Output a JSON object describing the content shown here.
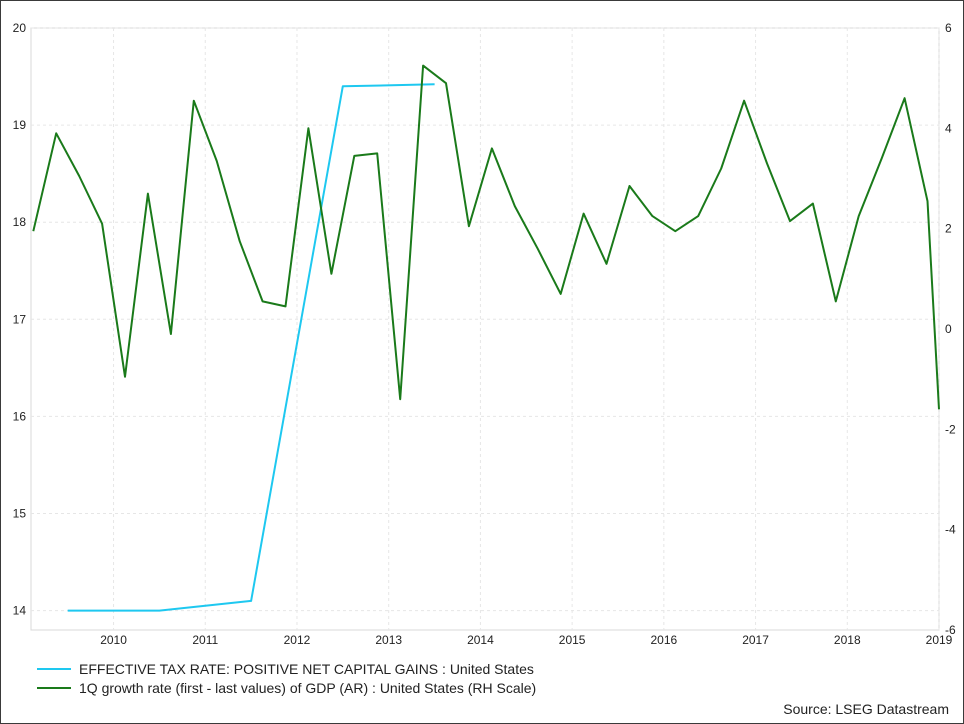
{
  "chart_data": {
    "type": "line",
    "x_axis": {
      "ticks": [
        "2010",
        "2011",
        "2012",
        "2013",
        "2014",
        "2015",
        "2016",
        "2017",
        "2018",
        "2019"
      ],
      "range": [
        2009.6,
        2019.5
      ]
    },
    "y_left": {
      "range": [
        13.8,
        20
      ],
      "ticks": [
        "14",
        "15",
        "16",
        "17",
        "18",
        "19",
        "20"
      ]
    },
    "y_right": {
      "range": [
        -6,
        6
      ],
      "ticks": [
        "-6",
        "-4",
        "-2",
        "0",
        "2",
        "4",
        "6"
      ]
    },
    "grid": true,
    "legend_position": "bottom-left",
    "series": [
      {
        "name": "EFFECTIVE TAX RATE: POSITIVE NET CAPITAL GAINS : United States",
        "axis": "left",
        "color": "#1ec8f0",
        "points": [
          [
            2010,
            14.0
          ],
          [
            2011,
            14.0
          ],
          [
            2012,
            14.1
          ],
          [
            2013,
            19.4
          ],
          [
            2014,
            19.42
          ]
        ]
      },
      {
        "name": "1Q growth rate (first - last values) of GDP (AR) : United States (RH Scale)",
        "axis": "right",
        "color": "#1a7a1a",
        "points": [
          [
            2009.625,
            1.95
          ],
          [
            2009.875,
            3.9
          ],
          [
            2010.125,
            3.05
          ],
          [
            2010.375,
            2.1
          ],
          [
            2010.625,
            -0.95
          ],
          [
            2010.875,
            2.7
          ],
          [
            2011.125,
            -0.1
          ],
          [
            2011.375,
            4.55
          ],
          [
            2011.625,
            3.35
          ],
          [
            2011.875,
            1.75
          ],
          [
            2012.125,
            0.55
          ],
          [
            2012.375,
            0.45
          ],
          [
            2012.625,
            4.0
          ],
          [
            2012.875,
            1.1
          ],
          [
            2013.125,
            3.45
          ],
          [
            2013.375,
            3.5
          ],
          [
            2013.625,
            -1.4
          ],
          [
            2013.875,
            5.25
          ],
          [
            2014.125,
            4.9
          ],
          [
            2014.375,
            2.05
          ],
          [
            2014.625,
            3.6
          ],
          [
            2014.875,
            2.45
          ],
          [
            2015.125,
            1.6
          ],
          [
            2015.375,
            0.7
          ],
          [
            2015.625,
            2.3
          ],
          [
            2015.875,
            1.3
          ],
          [
            2016.125,
            2.85
          ],
          [
            2016.375,
            2.25
          ],
          [
            2016.625,
            1.95
          ],
          [
            2016.875,
            2.25
          ],
          [
            2017.125,
            3.2
          ],
          [
            2017.375,
            4.55
          ],
          [
            2017.625,
            3.3
          ],
          [
            2017.875,
            2.15
          ],
          [
            2018.125,
            2.5
          ],
          [
            2018.375,
            0.55
          ],
          [
            2018.625,
            2.25
          ],
          [
            2018.875,
            3.4
          ],
          [
            2019.125,
            4.6
          ],
          [
            2019.375,
            2.55
          ],
          [
            2019.5,
            -1.6
          ]
        ]
      }
    ]
  },
  "source": "Source: LSEG Datastream"
}
